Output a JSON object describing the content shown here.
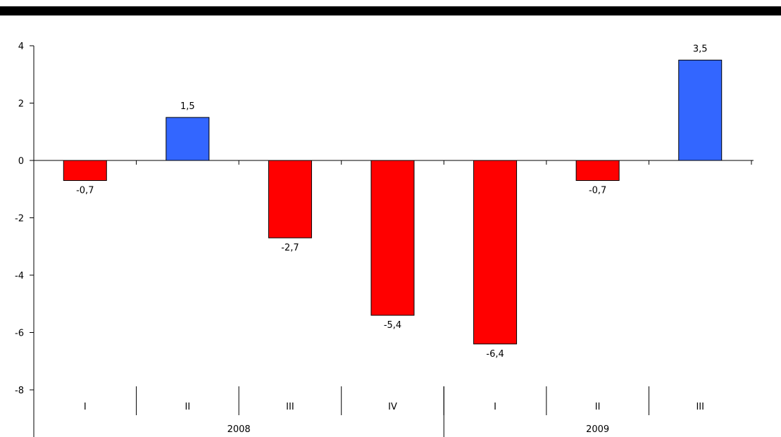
{
  "chart_data": {
    "type": "bar",
    "categories": [
      "I",
      "II",
      "III",
      "IV",
      "I",
      "II",
      "III"
    ],
    "groups": [
      {
        "label": "2008",
        "count": 4
      },
      {
        "label": "2009",
        "count": 3
      }
    ],
    "values": [
      -0.7,
      1.5,
      -2.7,
      -5.4,
      -6.4,
      -0.7,
      3.5
    ],
    "data_labels": [
      "-0,7",
      "1,5",
      "-2,7",
      "-5,4",
      "-6,4",
      "-0,7",
      "3,5"
    ],
    "yticks": [
      4,
      2,
      0,
      -2,
      -4,
      -6,
      -8
    ],
    "ylim": [
      -8,
      4
    ],
    "title": "",
    "xlabel": "",
    "ylabel": "",
    "colors": {
      "positive": "#3366ff",
      "negative": "#ff0000",
      "top_bar": "#000000"
    }
  }
}
